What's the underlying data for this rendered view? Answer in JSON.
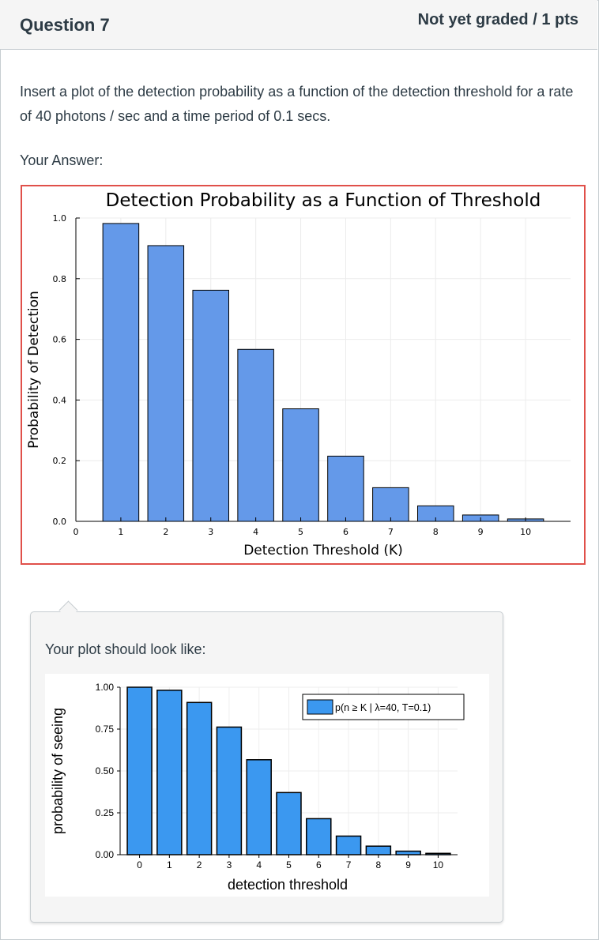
{
  "question": {
    "title": "Question 7",
    "points": "Not yet graded / 1 pts",
    "prompt": "Insert a plot of the detection probability as a function of the detection threshold for a rate of 40 photons / sec and a time period of 0.1 secs.",
    "answer_label": "Your Answer:"
  },
  "tip": {
    "label": "Your plot should look like:"
  },
  "colors": {
    "answer_border": "#e0504a",
    "answer_bar": "#6499e9",
    "reference_bar": "#3b98f0"
  },
  "chart_data": [
    {
      "type": "bar",
      "title": "Detection Probability as a Function of Threshold",
      "xlabel": "Detection Threshold (K)",
      "ylabel": "Probability of Detection",
      "x": [
        1,
        2,
        3,
        4,
        5,
        6,
        7,
        8,
        9,
        10
      ],
      "values": [
        0.982,
        0.909,
        0.762,
        0.567,
        0.371,
        0.215,
        0.111,
        0.051,
        0.021,
        0.008
      ],
      "xticks": [
        "0",
        "1",
        "2",
        "3",
        "4",
        "5",
        "6",
        "7",
        "8",
        "9",
        "10"
      ],
      "yticks": [
        "0.0",
        "0.2",
        "0.4",
        "0.6",
        "0.8",
        "1.0"
      ],
      "xlim": [
        0,
        11
      ],
      "ylim": [
        0,
        1.0
      ],
      "grid": true
    },
    {
      "type": "bar",
      "xlabel": "detection threshold",
      "ylabel": "probability of seeing",
      "legend": "p(n ≥ K | λ=40, T=0.1)",
      "legend_position": "top-right",
      "x": [
        0,
        1,
        2,
        3,
        4,
        5,
        6,
        7,
        8,
        9,
        10
      ],
      "values": [
        1.0,
        0.982,
        0.909,
        0.762,
        0.567,
        0.371,
        0.215,
        0.111,
        0.051,
        0.021,
        0.008
      ],
      "xticks": [
        "0",
        "1",
        "2",
        "3",
        "4",
        "5",
        "6",
        "7",
        "8",
        "9",
        "10"
      ],
      "yticks": [
        "0.00",
        "0.25",
        "0.50",
        "0.75",
        "1.00"
      ],
      "ylim": [
        0,
        1.0
      ],
      "grid": true
    }
  ]
}
